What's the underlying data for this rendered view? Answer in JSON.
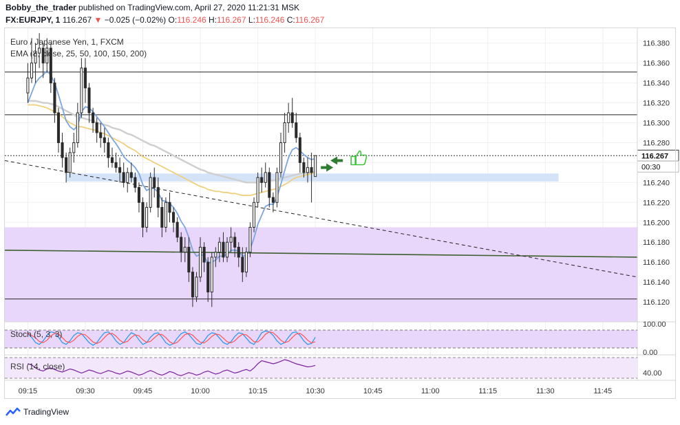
{
  "header": {
    "author": "Bobby_the_trader",
    "published": "published on TradingView.com, April 27, 2020 11:21:31 MSK",
    "symbol": "FX:EURJPY, 1",
    "price": "116.267",
    "change": "−0.025 (−0.02%)",
    "o_label": "O:",
    "o_val": "116.246",
    "h_label": "H:",
    "h_val": "116.267",
    "l_label": "L:",
    "l_val": "116.246",
    "c_label": "C:",
    "c_val": "116.267"
  },
  "chart_data": {
    "type": "candlestick",
    "title": "Euro / Japanese Yen, 1, FXCM",
    "indicator_label": "EMA (8, close, 25, 50, 100, 150, 200)",
    "ylim": [
      116.1,
      116.395
    ],
    "y_ticks": [
      "116.380",
      "116.360",
      "116.340",
      "116.320",
      "116.300",
      "116.280",
      "116.260",
      "116.240",
      "116.220",
      "116.200",
      "116.180",
      "116.160",
      "116.140",
      "116.120"
    ],
    "last_price_label": "116.267",
    "countdown_label": "00:30",
    "x_ticks": [
      "09:15",
      "09:30",
      "09:45",
      "10:00",
      "10:15",
      "10:30",
      "10:45",
      "11:00",
      "11:15",
      "11:30",
      "11:45"
    ],
    "x_tick_minutes": [
      0,
      15,
      30,
      45,
      60,
      75,
      90,
      105,
      120,
      135,
      150
    ],
    "x_start_minute": -6,
    "x_end_minute": 159,
    "candles": [
      [
        116.33,
        116.36,
        116.32,
        116.345
      ],
      [
        116.345,
        116.385,
        116.34,
        116.36
      ],
      [
        116.36,
        116.38,
        116.34,
        116.37
      ],
      [
        116.37,
        116.39,
        116.355,
        116.375
      ],
      [
        116.375,
        116.38,
        116.345,
        116.36
      ],
      [
        116.36,
        116.385,
        116.35,
        116.375
      ],
      [
        116.375,
        116.38,
        116.33,
        116.34
      ],
      [
        116.34,
        116.345,
        116.3,
        116.31
      ],
      [
        116.31,
        116.315,
        116.27,
        116.28
      ],
      [
        116.28,
        116.29,
        116.255,
        116.265
      ],
      [
        116.265,
        116.27,
        116.24,
        116.25
      ],
      [
        116.25,
        116.275,
        116.245,
        116.27
      ],
      [
        116.27,
        116.29,
        116.26,
        116.28
      ],
      [
        116.28,
        116.32,
        116.275,
        116.31
      ],
      [
        116.31,
        116.365,
        116.305,
        116.355
      ],
      [
        116.355,
        116.365,
        116.32,
        116.335
      ],
      [
        116.335,
        116.34,
        116.3,
        116.31
      ],
      [
        116.31,
        116.315,
        116.29,
        116.3
      ],
      [
        116.3,
        116.305,
        116.28,
        116.29
      ],
      [
        116.29,
        116.3,
        116.275,
        116.285
      ],
      [
        116.285,
        116.295,
        116.27,
        116.28
      ],
      [
        116.28,
        116.285,
        116.255,
        116.265
      ],
      [
        116.265,
        116.275,
        116.255,
        116.26
      ],
      [
        116.26,
        116.27,
        116.25,
        116.255
      ],
      [
        116.255,
        116.265,
        116.24,
        116.25
      ],
      [
        116.25,
        116.26,
        116.235,
        116.24
      ],
      [
        116.24,
        116.255,
        116.23,
        116.25
      ],
      [
        116.25,
        116.26,
        116.24,
        116.245
      ],
      [
        116.245,
        116.25,
        116.23,
        116.235
      ],
      [
        116.235,
        116.24,
        116.21,
        116.22
      ],
      [
        116.22,
        116.225,
        116.185,
        116.195
      ],
      [
        116.195,
        116.22,
        116.19,
        116.215
      ],
      [
        116.215,
        116.25,
        116.21,
        116.245
      ],
      [
        116.245,
        116.255,
        116.225,
        116.235
      ],
      [
        116.235,
        116.245,
        116.205,
        116.215
      ],
      [
        116.215,
        116.225,
        116.185,
        116.195
      ],
      [
        116.195,
        116.225,
        116.19,
        116.22
      ],
      [
        116.22,
        116.23,
        116.2,
        116.21
      ],
      [
        116.21,
        116.215,
        116.19,
        116.2
      ],
      [
        116.2,
        116.205,
        116.18,
        116.185
      ],
      [
        116.185,
        116.19,
        116.16,
        116.17
      ],
      [
        116.17,
        116.185,
        116.16,
        116.175
      ],
      [
        116.175,
        116.185,
        116.14,
        116.15
      ],
      [
        116.15,
        116.155,
        116.115,
        116.125
      ],
      [
        116.125,
        116.15,
        116.12,
        116.145
      ],
      [
        116.145,
        116.185,
        116.14,
        116.175
      ],
      [
        116.175,
        116.18,
        116.15,
        116.16
      ],
      [
        116.16,
        116.165,
        116.12,
        116.13
      ],
      [
        116.13,
        116.17,
        116.115,
        116.165
      ],
      [
        116.165,
        116.175,
        116.155,
        116.17
      ],
      [
        116.17,
        116.185,
        116.16,
        116.18
      ],
      [
        116.18,
        116.19,
        116.16,
        116.165
      ],
      [
        116.165,
        116.185,
        116.16,
        116.18
      ],
      [
        116.18,
        116.195,
        116.17,
        116.185
      ],
      [
        116.185,
        116.19,
        116.165,
        116.175
      ],
      [
        116.175,
        116.18,
        116.155,
        116.165
      ],
      [
        116.165,
        116.175,
        116.14,
        116.15
      ],
      [
        116.15,
        116.175,
        116.145,
        116.17
      ],
      [
        116.17,
        116.2,
        116.165,
        116.195
      ],
      [
        116.195,
        116.225,
        116.19,
        116.22
      ],
      [
        116.22,
        116.25,
        116.215,
        116.245
      ],
      [
        116.245,
        116.255,
        116.23,
        116.24
      ],
      [
        116.24,
        116.26,
        116.235,
        116.25
      ],
      [
        116.25,
        116.255,
        116.215,
        116.225
      ],
      [
        116.225,
        116.23,
        116.21,
        116.22
      ],
      [
        116.22,
        116.255,
        116.215,
        116.25
      ],
      [
        116.25,
        116.29,
        116.245,
        116.28
      ],
      [
        116.28,
        116.31,
        116.27,
        116.3
      ],
      [
        116.3,
        116.32,
        116.29,
        116.31
      ],
      [
        116.31,
        116.325,
        116.295,
        116.3
      ],
      [
        116.3,
        116.31,
        116.28,
        116.285
      ],
      [
        116.285,
        116.29,
        116.25,
        116.26
      ],
      [
        116.26,
        116.265,
        116.245,
        116.25
      ],
      [
        116.25,
        116.265,
        116.24,
        116.255
      ],
      [
        116.255,
        116.27,
        116.22,
        116.25
      ],
      [
        116.246,
        116.267,
        116.246,
        116.267
      ]
    ],
    "ema_fast": [
      116.32,
      116.33,
      116.34,
      116.345,
      116.348,
      116.352,
      116.348,
      116.34,
      116.328,
      116.315,
      116.302,
      116.296,
      116.293,
      116.297,
      116.311,
      116.316,
      116.315,
      116.311,
      116.306,
      116.301,
      116.296,
      116.29,
      116.284,
      116.279,
      116.273,
      116.266,
      116.262,
      116.259,
      116.255,
      116.249,
      116.238,
      116.232,
      116.234,
      116.234,
      116.23,
      116.222,
      116.221,
      116.219,
      116.215,
      116.209,
      116.201,
      116.195,
      116.185,
      116.172,
      116.166,
      116.168,
      116.166,
      116.159,
      116.16,
      116.162,
      116.166,
      116.166,
      116.168,
      116.172,
      116.172,
      116.171,
      116.166,
      116.167,
      116.173,
      116.184,
      116.198,
      116.207,
      116.216,
      116.218,
      116.218,
      116.225,
      116.238,
      116.252,
      116.265,
      116.273,
      116.275,
      116.272,
      116.268,
      116.265,
      116.263,
      116.264
    ],
    "ema_mid": [
      116.318,
      116.318,
      116.318,
      116.317,
      116.316,
      116.315,
      116.313,
      116.311,
      116.309,
      116.306,
      116.303,
      116.3,
      116.298,
      116.296,
      116.296,
      116.295,
      116.294,
      116.293,
      116.292,
      116.29,
      116.289,
      116.287,
      116.285,
      116.283,
      116.281,
      116.279,
      116.276,
      116.274,
      116.272,
      116.269,
      116.266,
      116.264,
      116.262,
      116.26,
      116.258,
      116.256,
      116.254,
      116.252,
      116.25,
      116.248,
      116.246,
      116.244,
      116.242,
      116.24,
      116.238,
      116.236,
      116.235,
      116.233,
      116.232,
      116.231,
      116.231,
      116.23,
      116.23,
      116.229,
      116.229,
      116.228,
      116.227,
      116.227,
      116.227,
      116.228,
      116.229,
      116.23,
      116.231,
      116.232,
      116.233,
      116.234,
      116.236,
      116.238,
      116.24,
      116.243,
      116.245,
      116.246,
      116.247,
      116.248,
      116.249,
      116.25
    ],
    "ema_slow": [
      116.322,
      116.322,
      116.322,
      116.321,
      116.32,
      116.32,
      116.319,
      116.318,
      116.316,
      116.314,
      116.312,
      116.31,
      116.308,
      116.306,
      116.305,
      116.304,
      116.303,
      116.302,
      116.3,
      116.299,
      116.298,
      116.297,
      116.295,
      116.294,
      116.293,
      116.291,
      116.289,
      116.288,
      116.286,
      116.284,
      116.282,
      116.28,
      116.278,
      116.277,
      116.275,
      116.273,
      116.271,
      116.269,
      116.267,
      116.265,
      116.263,
      116.261,
      116.259,
      116.257,
      116.255,
      116.253,
      116.252,
      116.25,
      116.249,
      116.248,
      116.247,
      116.246,
      116.245,
      116.244,
      116.243,
      116.242,
      116.241,
      116.24,
      116.24,
      116.24,
      116.24,
      116.241,
      116.241,
      116.242,
      116.242,
      116.243,
      116.244,
      116.245,
      116.246,
      116.247,
      116.248,
      116.249,
      116.249,
      116.25,
      116.25,
      116.251
    ],
    "stoch_label": "Stoch (5, 3, 3)",
    "stoch_ticks": [
      "100.00",
      "0.00"
    ],
    "rsi_label": "RSI (14, close)",
    "rsi_tick": "40.00",
    "stoch_k": [
      80,
      60,
      30,
      20,
      40,
      70,
      90,
      85,
      60,
      30,
      20,
      40,
      70,
      85,
      80,
      55,
      30,
      15,
      30,
      60,
      85,
      90,
      70,
      40,
      20,
      30,
      60,
      85,
      75,
      45,
      20,
      30,
      60,
      80,
      85,
      60,
      30,
      15,
      25,
      55,
      80,
      90,
      75,
      50,
      25,
      20,
      40,
      70,
      85,
      80,
      55,
      30,
      20,
      35,
      65,
      85,
      80,
      55,
      30,
      20,
      50,
      85,
      95,
      90,
      70,
      40,
      20,
      30,
      60,
      85,
      90,
      70,
      40,
      20,
      25,
      60
    ],
    "rsi": [
      58,
      56,
      50,
      46,
      44,
      48,
      50,
      47,
      44,
      42,
      45,
      48,
      46,
      43,
      40,
      43,
      46,
      44,
      41,
      39,
      42,
      45,
      43,
      40,
      38,
      41,
      44,
      42,
      39,
      36,
      38,
      42,
      45,
      42,
      38,
      36,
      39,
      43,
      41,
      37,
      35,
      38,
      41,
      39,
      36,
      38,
      42,
      44,
      41,
      38,
      40,
      44,
      46,
      43,
      40,
      42,
      45,
      47,
      44,
      50,
      58,
      64,
      62,
      60,
      58,
      60,
      63,
      66,
      64,
      61,
      58,
      56,
      54,
      52,
      53,
      55
    ],
    "colors": {
      "up": "#26a69a",
      "down": "#ef5350",
      "candle": "#2b2b2b",
      "ema_fast": "#7aa6e0",
      "ema_mid": "#f0cf7d",
      "ema_slow": "#cfcfcf",
      "zone": "#e9d6fb",
      "band": "#cfe0f7",
      "trend": "#3b5e2e",
      "stoch_k": "#2196f3",
      "stoch_d": "#ff5252",
      "rsi": "#7b1fa2"
    }
  },
  "footer": {
    "brand": "TradingView",
    "logo_icon": "tradingview-logo-icon"
  }
}
